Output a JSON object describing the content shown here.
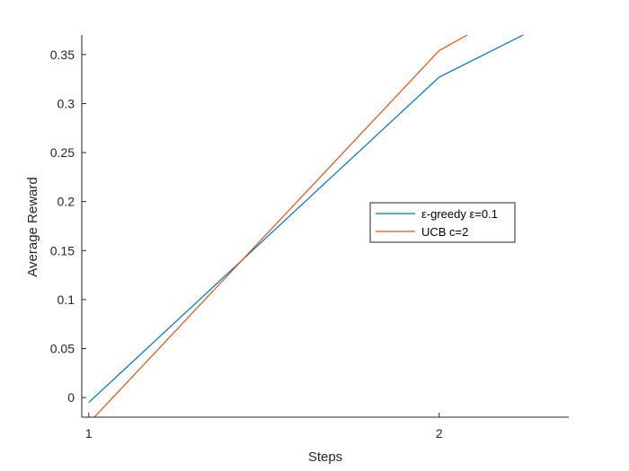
{
  "chart_data": {
    "type": "line",
    "xlabel": "Steps",
    "ylabel": "Average Reward",
    "xlim": [
      0.98,
      2.37
    ],
    "ylim": [
      -0.02,
      0.37
    ],
    "x_ticks": [
      {
        "value": 1,
        "label": "1"
      },
      {
        "value": 2,
        "label": "2"
      }
    ],
    "y_ticks": [
      {
        "value": 0,
        "label": "0"
      },
      {
        "value": 0.05,
        "label": "0.05"
      },
      {
        "value": 0.1,
        "label": "0.1"
      },
      {
        "value": 0.15,
        "label": "0.15"
      },
      {
        "value": 0.2,
        "label": "0.2"
      },
      {
        "value": 0.25,
        "label": "0.25"
      },
      {
        "value": 0.3,
        "label": "0.3"
      },
      {
        "value": 0.35,
        "label": "0.35"
      }
    ],
    "grid": false,
    "legend_position": "center-right",
    "series": [
      {
        "name": "ε-greedy ε=0.1",
        "color": "#0072BD",
        "x": [
          1.0,
          2.0,
          2.24
        ],
        "y": [
          -0.005,
          0.327,
          0.37
        ]
      },
      {
        "name": "UCB c=2",
        "color": "#D95319",
        "x": [
          1.0,
          2.0,
          2.08
        ],
        "y": [
          -0.026,
          0.354,
          0.37
        ]
      }
    ]
  }
}
